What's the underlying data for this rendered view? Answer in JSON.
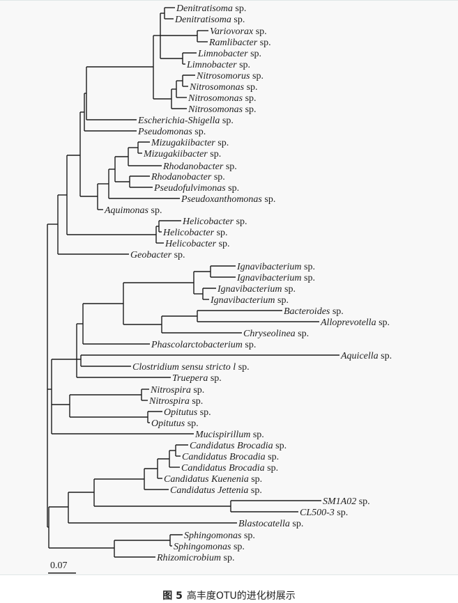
{
  "figure": {
    "leaves": [
      {
        "genus": "Denitratisoma",
        "suffix": " sp."
      },
      {
        "genus": "Denitratisoma",
        "suffix": " sp."
      },
      {
        "genus": "Variovorax",
        "suffix": " sp."
      },
      {
        "genus": "Ramlibacter",
        "suffix": " sp."
      },
      {
        "genus": "Limnobacter",
        "suffix": " sp."
      },
      {
        "genus": "Limnobacter",
        "suffix": " sp."
      },
      {
        "genus": "Nitrosomorus",
        "suffix": " sp."
      },
      {
        "genus": "Nitrosomonas",
        "suffix": " sp."
      },
      {
        "genus": "Nitrosomonas",
        "suffix": " sp."
      },
      {
        "genus": "Nitrosomonas",
        "suffix": " sp."
      },
      {
        "genus": "Escherichia-Shigella",
        "suffix": " sp."
      },
      {
        "genus": "Pseudomonas",
        "suffix": " sp."
      },
      {
        "genus": "Mizugakiibacter",
        "suffix": " sp."
      },
      {
        "genus": "Mizugakiibacter",
        "suffix": " sp."
      },
      {
        "genus": "Rhodanobacter",
        "suffix": " sp."
      },
      {
        "genus": "Rhodanobacter",
        "suffix": " sp."
      },
      {
        "genus": "Pseudofulvimonas",
        "suffix": " sp."
      },
      {
        "genus": "Pseudoxanthomonas",
        "suffix": " sp."
      },
      {
        "genus": "Aquimonas",
        "suffix": " sp."
      },
      {
        "genus": "Helicobacter",
        "suffix": " sp."
      },
      {
        "genus": "Helicobacter",
        "suffix": " sp."
      },
      {
        "genus": "Helicobacter",
        "suffix": " sp."
      },
      {
        "genus": "Geobacter",
        "suffix": " sp."
      },
      {
        "genus": "Ignavibacterium",
        "suffix": " sp."
      },
      {
        "genus": "Ignavibacterium",
        "suffix": " sp."
      },
      {
        "genus": "Ignavibacterium",
        "suffix": " sp."
      },
      {
        "genus": "Ignavibacterium",
        "suffix": " sp."
      },
      {
        "genus": "Bacteroides",
        "suffix": " sp."
      },
      {
        "genus": "Alloprevotella",
        "suffix": " sp."
      },
      {
        "genus": "Chryseolinea",
        "suffix": " sp."
      },
      {
        "genus": "Phascolarctobacterium",
        "suffix": " sp."
      },
      {
        "genus": "Aquicella",
        "suffix": " sp."
      },
      {
        "genus": "Clostridium sensu stricto l",
        "suffix": " sp."
      },
      {
        "genus": "Truepera",
        "suffix": " sp."
      },
      {
        "genus": "Nitrospira",
        "suffix": " sp."
      },
      {
        "genus": "Nitrospira",
        "suffix": " sp."
      },
      {
        "genus": "Opitutus",
        "suffix": " sp."
      },
      {
        "genus": "Opitutus",
        "suffix": " sp."
      },
      {
        "genus": "Mucispirillum",
        "suffix": " sp."
      },
      {
        "genus": "Candidatus Brocadia",
        "suffix": " sp."
      },
      {
        "genus": "Candidatus Brocadia",
        "suffix": " sp."
      },
      {
        "genus": "Candidatus Brocadia",
        "suffix": " sp."
      },
      {
        "genus": "Candidatus Kuenenia",
        "suffix": " sp."
      },
      {
        "genus": "Candidatus Jettenia",
        "suffix": " sp."
      },
      {
        "genus": "SM1A02",
        "suffix": " sp."
      },
      {
        "genus": "CL500-3",
        "suffix": " sp."
      },
      {
        "genus": "Blastocatella",
        "suffix": " sp."
      },
      {
        "genus": "Sphingomonas",
        "suffix": " sp."
      },
      {
        "genus": "Sphingomonas",
        "suffix": " sp."
      },
      {
        "genus": "Rhizomicrobium",
        "suffix": " sp."
      }
    ],
    "scale_bar": "0.07",
    "line_color": "#1a1a1a"
  },
  "caption": {
    "number": "图 5",
    "text": "高丰度OTU的进化树展示"
  }
}
